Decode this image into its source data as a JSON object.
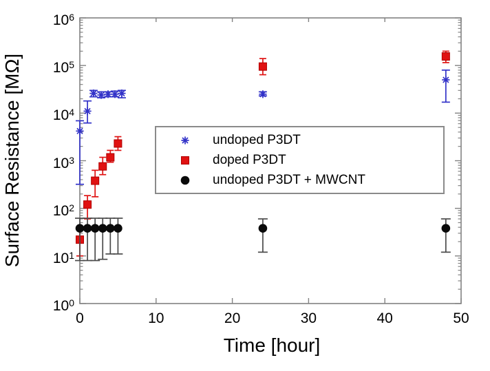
{
  "chart_data": {
    "type": "scatter",
    "title": "",
    "xlabel": "Time [hour]",
    "ylabel": "Surface Resistance [MΩ]",
    "yscale": "log",
    "xlim": [
      0,
      50
    ],
    "ylim": [
      1,
      1000000
    ],
    "xticks": [
      0,
      10,
      20,
      30,
      40,
      50
    ],
    "ytick_exponents": [
      0,
      1,
      2,
      3,
      4,
      5,
      6
    ],
    "grid": false,
    "legend_position": "center",
    "axis_color": "#828282",
    "text_color": "#000000",
    "background_color": "#ffffff",
    "series": [
      {
        "name": "undoped P3DT",
        "marker": "asterisk",
        "color": "#3232c8",
        "points": [
          {
            "x": 0,
            "y": 4200,
            "lo": 320,
            "hi": 6900
          },
          {
            "x": 1,
            "y": 11000,
            "lo": 6200,
            "hi": 18000
          },
          {
            "x": 1.8,
            "y": 26000,
            "lo": 22000,
            "hi": 30000
          },
          {
            "x": 2.8,
            "y": 24000,
            "lo": 21000,
            "hi": 28000
          },
          {
            "x": 3.7,
            "y": 25000,
            "lo": 22000,
            "hi": 28000
          },
          {
            "x": 4.6,
            "y": 25000,
            "lo": 22000,
            "hi": 29000
          },
          {
            "x": 5.5,
            "y": 26000,
            "lo": 21000,
            "hi": 30000
          },
          {
            "x": 24,
            "y": 25000,
            "lo": 23000,
            "hi": 28000
          },
          {
            "x": 48,
            "y": 50000,
            "lo": 17000,
            "hi": 80000
          }
        ]
      },
      {
        "name": "doped P3DT",
        "marker": "square",
        "color": "#e01212",
        "points": [
          {
            "x": 0,
            "y": 22,
            "lo": 10,
            "hi": 40
          },
          {
            "x": 1,
            "y": 120,
            "lo": 60,
            "hi": 185
          },
          {
            "x": 2,
            "y": 380,
            "lo": 175,
            "hi": 630
          },
          {
            "x": 3,
            "y": 760,
            "lo": 510,
            "hi": 1180
          },
          {
            "x": 4,
            "y": 1180,
            "lo": 930,
            "hi": 1650
          },
          {
            "x": 5,
            "y": 2300,
            "lo": 1650,
            "hi": 3200
          },
          {
            "x": 24,
            "y": 95000,
            "lo": 64000,
            "hi": 140000
          },
          {
            "x": 48,
            "y": 155000,
            "lo": 115000,
            "hi": 200000
          }
        ]
      },
      {
        "name": "undoped P3DT + MWCNT",
        "marker": "circle",
        "color": "#0a0a0a",
        "errbar_color": "#4a4a4a",
        "points": [
          {
            "x": 0,
            "y": 38,
            "lo": 8,
            "hi": 62
          },
          {
            "x": 1,
            "y": 38,
            "lo": 8,
            "hi": 62
          },
          {
            "x": 2,
            "y": 38,
            "lo": 8,
            "hi": 62
          },
          {
            "x": 3,
            "y": 38,
            "lo": 8.5,
            "hi": 62
          },
          {
            "x": 4,
            "y": 38,
            "lo": 11,
            "hi": 62
          },
          {
            "x": 5,
            "y": 38,
            "lo": 11,
            "hi": 62
          },
          {
            "x": 24,
            "y": 38,
            "lo": 12,
            "hi": 60
          },
          {
            "x": 48,
            "y": 38,
            "lo": 12,
            "hi": 60
          }
        ]
      }
    ]
  }
}
